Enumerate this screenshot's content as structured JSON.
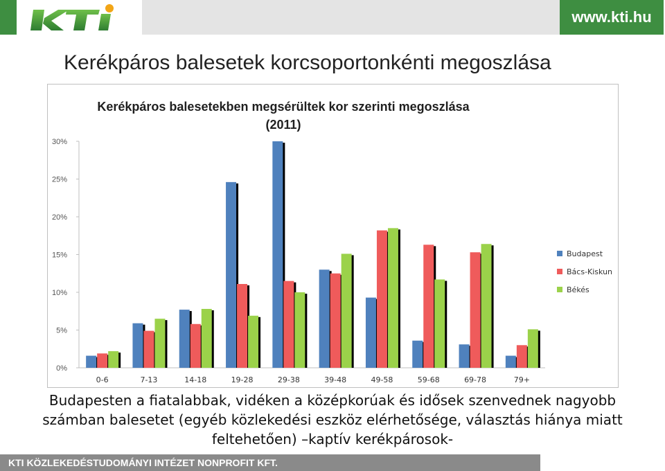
{
  "header": {
    "logo_text": "KTI",
    "url": "www.kti.hu"
  },
  "slide": {
    "title": "Kerékpáros balesetek korcsoportonkénti megoszlása",
    "caption_lines": [
      "Budapesten a fiatalabbak, vidéken a középkorúak és idősek szenvednek nagyobb",
      "számban balesetet (egyéb közlekedési eszköz elérhetősége, választás hiánya miatt",
      "feltehetően) –kaptív kerékpárosok-"
    ]
  },
  "footer": {
    "text": "KTI KÖZLEKEDÉSTUDOMÁNYI INTÉZET NONPROFIT KFT."
  },
  "colors": {
    "green": "#3e8e41",
    "budapest": "#4f81bd",
    "bacs_kiskun": "#ef5b5b",
    "bekes": "#9bd24a"
  },
  "chart_data": {
    "type": "bar",
    "title_lines": [
      "Kerékpáros balesetekben megsérültek kor szerinti megoszlása",
      "(2011)"
    ],
    "categories": [
      "0-6",
      "7-13",
      "14-18",
      "19-28",
      "29-38",
      "39-48",
      "49-58",
      "59-68",
      "69-78",
      "79+"
    ],
    "series": [
      {
        "name": "Budapest",
        "values": [
          1.6,
          5.9,
          7.7,
          24.6,
          30.0,
          13.0,
          9.3,
          3.6,
          3.1,
          1.6
        ]
      },
      {
        "name": "Bács-Kiskun",
        "values": [
          1.9,
          4.9,
          5.8,
          11.1,
          11.5,
          12.5,
          18.2,
          16.3,
          15.3,
          3.0
        ]
      },
      {
        "name": "Békés",
        "values": [
          2.2,
          6.5,
          7.8,
          6.9,
          10.0,
          15.1,
          18.5,
          11.7,
          16.4,
          5.1
        ]
      }
    ],
    "yticks": [
      "0%",
      "5%",
      "10%",
      "15%",
      "20%",
      "25%",
      "30%"
    ],
    "ylim": [
      0,
      30
    ],
    "legend_position": "right",
    "grid": false
  }
}
